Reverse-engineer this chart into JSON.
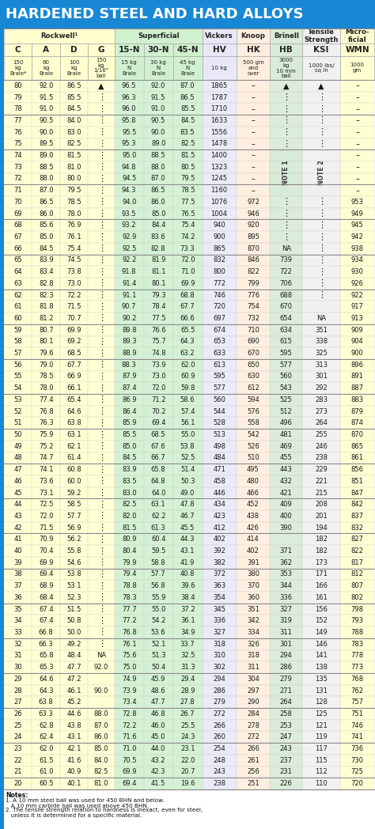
{
  "title": "HARDENED STEEL AND HARD ALLOYS",
  "col_colors": [
    "#ffffd0",
    "#ffffd0",
    "#ffffd0",
    "#ffffd0",
    "#d0f0d0",
    "#d0f0d0",
    "#d0f0d0",
    "#e8e8f8",
    "#ffeedd",
    "#d8ead8",
    "#f0f0f0",
    "#ffffd0"
  ],
  "header2": [
    "C",
    "A",
    "D",
    "G",
    "15-N",
    "30-N",
    "45-N",
    "HV",
    "HK",
    "HB",
    "KSI",
    "WMN"
  ],
  "subheaders": [
    "150\nkg\nBrale*",
    "60\nkg\nBrale",
    "100\nkg\nBrale",
    "150\nkg\n1/16\"\nball",
    "15 kg\nN\nBrale",
    "30 kg\nN\nBrale",
    "45 kg\nN\nBrale",
    "10 kg",
    "500 gm\nand\nover",
    "3000\nkg\n10 mm\nball",
    "1000 lbs/\nsq in",
    "1000\ngm"
  ],
  "col_widths_rel": [
    4.8,
    4.8,
    4.8,
    4.5,
    5.0,
    5.0,
    5.0,
    5.8,
    5.8,
    5.5,
    6.5,
    5.8
  ],
  "rows": [
    [
      "80",
      "92.0",
      "86.5",
      "▲",
      "96.5",
      "92.0",
      "87.0",
      "1865",
      "–",
      "▲",
      "▲",
      "–"
    ],
    [
      "79",
      "91.5",
      "85.5",
      "⋮",
      "96.3",
      "91.5",
      "86.5",
      "1787",
      "–",
      "⋮",
      "⋮",
      "–"
    ],
    [
      "78",
      "91.0",
      "84.5",
      "⋮",
      "96.0",
      "91.0",
      "85.5",
      "1710",
      "–",
      "⋮",
      "⋮",
      "–"
    ],
    [
      "77",
      "90.5",
      "84.0",
      "⋮",
      "95.8",
      "90.5",
      "84.5",
      "1633",
      "–",
      "⋮",
      "⋮",
      "–"
    ],
    [
      "76",
      "90.0",
      "83.0",
      "⋮",
      "95.5",
      "90.0",
      "83.5",
      "1556",
      "–",
      "⋮",
      "⋮",
      "–"
    ],
    [
      "75",
      "89.5",
      "82.5",
      "⋮",
      "95.3",
      "89.0",
      "82.5",
      "1478",
      "–",
      "⋮",
      "⋮",
      "–"
    ],
    [
      "74",
      "89.0",
      "81.5",
      "⋮",
      "95.0",
      "88.5",
      "81.5",
      "1400",
      "–",
      "NOTE1",
      "NOTE2",
      "–"
    ],
    [
      "73",
      "88.5",
      "81.0",
      "⋮",
      "94.8",
      "88.0",
      "80.5",
      "1323",
      "–",
      "⋮",
      "⋮",
      "–"
    ],
    [
      "72",
      "88.0",
      "80.0",
      "⋮",
      "94.5",
      "87.0",
      "79.5",
      "1245",
      "–",
      "⋮",
      "⋮",
      "–"
    ],
    [
      "71",
      "87.0",
      "79.5",
      "⋮",
      "94.3",
      "86.5",
      "78.5",
      "1160",
      "–",
      "⋮",
      "⋮",
      "–"
    ],
    [
      "70",
      "86.5",
      "78.5",
      "⋮",
      "94.0",
      "86.0",
      "77.5",
      "1076",
      "972",
      "⋮",
      "⋮",
      "953"
    ],
    [
      "69",
      "86.0",
      "78.0",
      "⋮",
      "93.5",
      "85.0",
      "76.5",
      "1004",
      "946",
      "⋮",
      "⋮",
      "949"
    ],
    [
      "68",
      "85.6",
      "76.9",
      "⋮",
      "93.2",
      "84.4",
      "75.4",
      "940",
      "920",
      "⋮",
      "⋮",
      "945"
    ],
    [
      "67",
      "85.0",
      "76.1",
      "⋮",
      "92.9",
      "83.6",
      "74.2",
      "900",
      "895",
      "⋮",
      "⋮",
      "942"
    ],
    [
      "66",
      "84.5",
      "75.4",
      "⋮",
      "92.5",
      "82.8",
      "73.3",
      "865",
      "870",
      "NA",
      "⋮",
      "938"
    ],
    [
      "65",
      "83.9",
      "74.5",
      "⋮",
      "92.2",
      "81.9",
      "72.0",
      "832",
      "846",
      "739",
      "⋮",
      "934"
    ],
    [
      "64",
      "83.4",
      "73.8",
      "⋮",
      "91.8",
      "81.1",
      "71.0",
      "800",
      "822",
      "722",
      "⋮",
      "930"
    ],
    [
      "63",
      "82.8",
      "73.0",
      "⋮",
      "91.4",
      "80.1",
      "69.9",
      "772",
      "799",
      "706",
      "⋮",
      "926"
    ],
    [
      "62",
      "82.3",
      "72.2",
      "⋮",
      "91.1",
      "79.3",
      "68.8",
      "746",
      "776",
      "688",
      "⋮",
      "922"
    ],
    [
      "61",
      "81.8",
      "71.5",
      "⋮",
      "90.7",
      "78.4",
      "67.7",
      "720",
      "754",
      "670",
      "",
      "917"
    ],
    [
      "60",
      "81.2",
      "70.7",
      "⋮",
      "90.2",
      "77.5",
      "66.6",
      "697",
      "732",
      "654",
      "NA",
      "913"
    ],
    [
      "59",
      "80.7",
      "69.9",
      "⋮",
      "89.8",
      "76.6",
      "65.5",
      "674",
      "710",
      "634",
      "351",
      "909"
    ],
    [
      "58",
      "80.1",
      "69.2",
      "⋮",
      "89.3",
      "75.7",
      "64.3",
      "653",
      "690",
      "615",
      "338",
      "904"
    ],
    [
      "57",
      "79.6",
      "68.5",
      "⋮",
      "88.9",
      "74.8",
      "63.2",
      "633",
      "670",
      "595",
      "325",
      "900"
    ],
    [
      "56",
      "79.0",
      "67.7",
      "⋮",
      "88.3",
      "73.9",
      "62.0",
      "613",
      "650",
      "577",
      "313",
      "896"
    ],
    [
      "55",
      "78.5",
      "66.9",
      "⋮",
      "87.9",
      "73.0",
      "60.9",
      "595",
      "630",
      "560",
      "301",
      "891"
    ],
    [
      "54",
      "78.0",
      "66.1",
      "⋮",
      "87.4",
      "72.0",
      "59.8",
      "577",
      "612",
      "543",
      "292",
      "887"
    ],
    [
      "53",
      "77.4",
      "65.4",
      "⋮",
      "86.9",
      "71.2",
      "58.6",
      "560",
      "594",
      "525",
      "283",
      "883"
    ],
    [
      "52",
      "76.8",
      "64.6",
      "⋮",
      "86.4",
      "70.2",
      "57.4",
      "544",
      "576",
      "512",
      "273",
      "879"
    ],
    [
      "51",
      "76.3",
      "63.8",
      "⋮",
      "85.9",
      "69.4",
      "56.1",
      "528",
      "558",
      "496",
      "264",
      "874"
    ],
    [
      "50",
      "75.9",
      "63.1",
      "⋮",
      "85.5",
      "68.5",
      "55.0",
      "513",
      "542",
      "481",
      "255",
      "870"
    ],
    [
      "49",
      "75.2",
      "62.1",
      "⋮",
      "85.0",
      "67.6",
      "53.8",
      "498",
      "526",
      "469",
      "246",
      "865"
    ],
    [
      "48",
      "74.7",
      "61.4",
      "⋮",
      "84.5",
      "66.7",
      "52.5",
      "484",
      "510",
      "455",
      "238",
      "861"
    ],
    [
      "47",
      "74.1",
      "60.8",
      "⋮",
      "83.9",
      "65.8",
      "51.4",
      "471",
      "495",
      "443",
      "229",
      "856"
    ],
    [
      "46",
      "73.6",
      "60.0",
      "⋮",
      "83.5",
      "64.8",
      "50.3",
      "458",
      "480",
      "432",
      "221",
      "851"
    ],
    [
      "45",
      "73.1",
      "59.2",
      "⋮",
      "83.0",
      "64.0",
      "49.0",
      "446",
      "466",
      "421",
      "215",
      "847"
    ],
    [
      "44",
      "72.5",
      "58.5",
      "⋮",
      "82.5",
      "63.1",
      "47.8",
      "434",
      "452",
      "409",
      "208",
      "842"
    ],
    [
      "43",
      "72.0",
      "57.7",
      "⋮",
      "82.0",
      "62.2",
      "46.7",
      "423",
      "438",
      "400",
      "201",
      "837"
    ],
    [
      "42",
      "71.5",
      "56.9",
      "⋮",
      "81.5",
      "61.3",
      "45.5",
      "412",
      "426",
      "390",
      "194",
      "832"
    ],
    [
      "41",
      "70.9",
      "56.2",
      "⋮",
      "80.9",
      "60.4",
      "44.3",
      "402",
      "414",
      "",
      "182",
      "827"
    ],
    [
      "40",
      "70.4",
      "55.8",
      "⋮",
      "80.4",
      "59.5",
      "43.1",
      "392",
      "402",
      "371",
      "182",
      "822"
    ],
    [
      "39",
      "69.9",
      "54.6",
      "⋮",
      "79.9",
      "58.8",
      "41.9",
      "382",
      "391",
      "362",
      "173",
      "817"
    ],
    [
      "38",
      "69.4",
      "53.8",
      "⋮",
      "79.4",
      "57.7",
      "40.8",
      "372",
      "380",
      "353",
      "171",
      "812"
    ],
    [
      "37",
      "68.9",
      "53.1",
      "⋮",
      "78.8",
      "56.8",
      "39.6",
      "363",
      "370",
      "344",
      "166",
      "807"
    ],
    [
      "36",
      "68.4",
      "52.3",
      "⋮",
      "78.3",
      "55.9",
      "38.4",
      "354",
      "360",
      "336",
      "161",
      "802"
    ],
    [
      "35",
      "67.4",
      "51.5",
      "⋮",
      "77.7",
      "55.0",
      "37.2",
      "345",
      "351",
      "327",
      "156",
      "798"
    ],
    [
      "34",
      "67.4",
      "50.8",
      "⋮",
      "77.2",
      "54.2",
      "36.1",
      "336",
      "342",
      "319",
      "152",
      "793"
    ],
    [
      "33",
      "66.8",
      "50.0",
      "⋮",
      "76.8",
      "53.6",
      "34.9",
      "327",
      "334",
      "311",
      "149",
      "788"
    ],
    [
      "32",
      "66.3",
      "49.2",
      "⋮",
      "76.1",
      "52.1",
      "33.7",
      "318",
      "326",
      "301",
      "146",
      "783"
    ],
    [
      "31",
      "65.8",
      "48.4",
      "NA",
      "75.6",
      "51.3",
      "32.5",
      "310",
      "318",
      "294",
      "141",
      "778"
    ],
    [
      "30",
      "65.3",
      "47.7",
      "92.0",
      "75.0",
      "50.4",
      "31.3",
      "302",
      "311",
      "286",
      "138",
      "773"
    ],
    [
      "29",
      "64.6",
      "47.2",
      "",
      "74.9",
      "45.9",
      "29.4",
      "294",
      "304",
      "279",
      "135",
      "768"
    ],
    [
      "28",
      "64.3",
      "46.1",
      "90.0",
      "73.9",
      "48.6",
      "28.9",
      "286",
      "297",
      "271",
      "131",
      "762"
    ],
    [
      "27",
      "63.8",
      "45.2",
      "",
      "73.4",
      "47.7",
      "27.8",
      "279",
      "290",
      "264",
      "128",
      "757"
    ],
    [
      "26",
      "63.3",
      "44.6",
      "88.0",
      "72.8",
      "46.8",
      "26.7",
      "272",
      "284",
      "258",
      "125",
      "751"
    ],
    [
      "25",
      "62.8",
      "43.8",
      "87.0",
      "72.2",
      "46.0",
      "25.5",
      "266",
      "278",
      "253",
      "121",
      "746"
    ],
    [
      "24",
      "62.4",
      "43.1",
      "86.0",
      "71.6",
      "45.0",
      "24.3",
      "260",
      "272",
      "247",
      "119",
      "741"
    ],
    [
      "23",
      "62.0",
      "42.1",
      "85.0",
      "71.0",
      "44.0",
      "23.1",
      "254",
      "266",
      "243",
      "117",
      "736"
    ],
    [
      "22",
      "61.5",
      "41.6",
      "84.0",
      "70.5",
      "43.2",
      "22.0",
      "248",
      "261",
      "237",
      "115",
      "730"
    ],
    [
      "21",
      "61.0",
      "40.9",
      "82.5",
      "69.9",
      "42.3",
      "20.7",
      "243",
      "256",
      "231",
      "112",
      "725"
    ],
    [
      "20",
      "60.5",
      "40.1",
      "81.0",
      "69.4",
      "41.5",
      "19.6",
      "238",
      "251",
      "226",
      "110",
      "720"
    ]
  ]
}
